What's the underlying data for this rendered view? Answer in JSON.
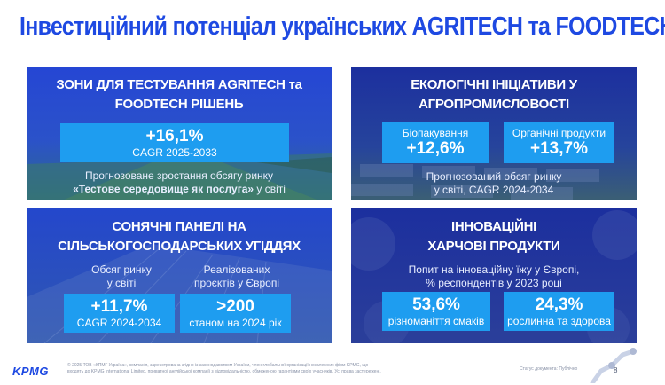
{
  "title": "Інвестиційний потенціал українських AGRITECH та FOODTECH",
  "panels": {
    "testing": {
      "heading_line1": "ЗОНИ ДЛЯ ТЕСТУВАННЯ AGRITECH та",
      "heading_line2": "FOODTECH РІШЕНЬ",
      "stat_value": "+16,1%",
      "stat_caption": "CAGR 2025-2033",
      "desc_line1": "Прогнозоване зростання обсягу ринку",
      "desc_bold": "«Тестове середовище як послуга»",
      "desc_tail": " у світі"
    },
    "eco": {
      "heading_line1": "ЕКОЛОГІЧНІ ІНІЦІАТИВИ У",
      "heading_line2": "АГРОПРОМИСЛОВОСТІ",
      "box1_label": "Біопакування",
      "box1_value": "+12,6%",
      "box2_label": "Органічні продукти",
      "box2_value": "+13,7%",
      "desc_line1": "Прогнозований обсяг ринку",
      "desc_line2": "у світі, CAGR 2024-2034"
    },
    "solar": {
      "heading_line1": "СОНЯЧНІ ПАНЕЛІ НА",
      "heading_line2": "СІЛЬСЬКОГОСПОДАРСЬКИХ УГІДДЯХ",
      "left_label_line1": "Обсяг ринку",
      "left_label_line2": "у світі",
      "right_label_line1": "Реалізованих",
      "right_label_line2": "проєктів у Європі",
      "box1_value": "+11,7%",
      "box1_caption": "CAGR 2024-2034",
      "box2_value": ">200",
      "box2_caption": "станом на 2024 рік"
    },
    "food": {
      "heading_line1": "ІННОВАЦІЙНІ",
      "heading_line2": "ХАРЧОВІ ПРОДУКТИ",
      "desc_line1": "Попит на інноваційну їжу у Європі,",
      "desc_line2": "% респондентів у 2023 році",
      "box1_value": "53,6%",
      "box1_caption": "різноманіття смаків",
      "box2_value": "24,3%",
      "box2_caption": "рослинна та здорова"
    }
  },
  "footer": {
    "logo": "KPMG",
    "legal_line1": "© 2025 ТОВ «КПМГ Україна», компанія, зареєстрована згідно із законодавством України, член глобальної організації незалежних фірм KPMG, що",
    "legal_line2": "входять до KPMG International Limited, приватної англійської компанії з відповідальністю, обмеженою гарантіями своїх учасників. Усі права застережені.",
    "status": "Статус документа: Публічно",
    "page": "8"
  },
  "colors": {
    "title": "#1e49e2",
    "panel_dark": "#1a2a9a",
    "stat_box": "#1e9df0"
  }
}
